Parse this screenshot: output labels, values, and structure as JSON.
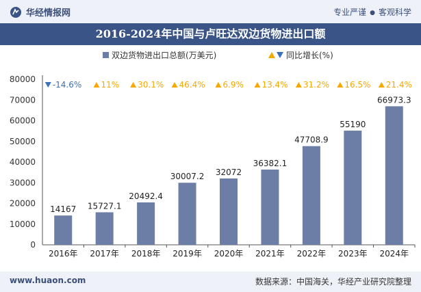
{
  "header": {
    "brand": "华经情报网",
    "tagline_left": "专业严谨",
    "tagline_right": "客观科学"
  },
  "footer": {
    "website": "www.huaon.com",
    "source": "数据来源：中国海关，华经产业研究院整理"
  },
  "colors": {
    "bar": "#6d7ea6",
    "growth_positive": "#f5a800",
    "growth_negative": "#3a70b8",
    "title_bg": "#3a5487"
  },
  "chart_data": {
    "type": "bar",
    "title": "2016-2024年中国与卢旺达双边货物进出口额",
    "legend": {
      "bar_label": "双边货物进出口总额(万美元)",
      "growth_label": "同比增长(%)"
    },
    "categories": [
      "2016年",
      "2017年",
      "2018年",
      "2019年",
      "2020年",
      "2021年",
      "2022年",
      "2023年",
      "2024年"
    ],
    "values": [
      14167,
      15727.1,
      20492.4,
      30007.2,
      32072,
      36382.1,
      47708.9,
      55190,
      66973.3
    ],
    "value_labels": [
      "14167",
      "15727.1",
      "20492.4",
      "30007.2",
      "32072",
      "36382.1",
      "47708.9",
      "55190",
      "66973.3"
    ],
    "growth": [
      -14.6,
      11,
      30.1,
      46.4,
      6.9,
      13.4,
      31.2,
      16.5,
      21.4
    ],
    "growth_labels": [
      "-14.6%",
      "11%",
      "30.1%",
      "46.4%",
      "6.9%",
      "13.4%",
      "31.2%",
      "16.5%",
      "21.4%"
    ],
    "yticks": [
      "0",
      "10000",
      "20000",
      "30000",
      "40000",
      "50000",
      "60000",
      "70000",
      "80000"
    ],
    "ylim": [
      0,
      80000
    ]
  }
}
